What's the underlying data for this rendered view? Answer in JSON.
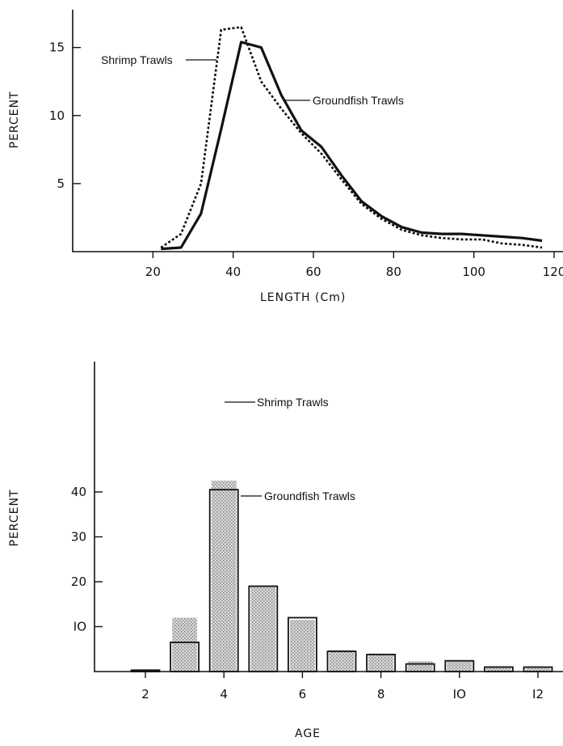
{
  "chart_data": [
    {
      "type": "line",
      "title": "",
      "xlabel": "LENGTH (Cm)",
      "ylabel": "PERCENT",
      "xlim": [
        0,
        120
      ],
      "ylim": [
        0,
        18
      ],
      "xticks": [
        "20",
        "40",
        "60",
        "80",
        "100",
        "120"
      ],
      "yticks": [
        "5",
        "10",
        "15"
      ],
      "grid": false,
      "series": [
        {
          "name": "Shrimp Trawls",
          "style": "dotted",
          "x": [
            22,
            27,
            32,
            37,
            42,
            47,
            52,
            57,
            62,
            67,
            72,
            77,
            82,
            87,
            92,
            97,
            102,
            107,
            112,
            117
          ],
          "y": [
            0.3,
            1.3,
            5.0,
            16.3,
            16.5,
            12.5,
            10.5,
            8.7,
            7.2,
            5.3,
            3.5,
            2.4,
            1.6,
            1.2,
            1.0,
            0.9,
            0.9,
            0.6,
            0.5,
            0.3
          ]
        },
        {
          "name": "Groundfish Trawls",
          "style": "solid",
          "x": [
            22,
            27,
            32,
            37,
            42,
            47,
            52,
            57,
            62,
            67,
            72,
            77,
            82,
            87,
            92,
            97,
            102,
            107,
            112,
            117
          ],
          "y": [
            0.2,
            0.3,
            2.8,
            9.0,
            15.4,
            15.0,
            11.5,
            8.9,
            7.7,
            5.6,
            3.7,
            2.6,
            1.8,
            1.4,
            1.3,
            1.3,
            1.2,
            1.1,
            1.0,
            0.8
          ]
        }
      ],
      "annotations": [
        "Shrimp Trawls",
        "Groundfish Trawls"
      ]
    },
    {
      "type": "bar",
      "title": "",
      "xlabel": "AGE",
      "ylabel": "PERCENT",
      "xlim": [
        0,
        13
      ],
      "ylim": [
        0,
        47
      ],
      "xticks": [
        "2",
        "4",
        "6",
        "8",
        "IO",
        "I2"
      ],
      "yticks": [
        "IO",
        "20",
        "30",
        "40"
      ],
      "categories": [
        2,
        3,
        4,
        5,
        6,
        7,
        8,
        9,
        10,
        11,
        12
      ],
      "grid": false,
      "series": [
        {
          "name": "Shrimp Trawls",
          "style": "stippled",
          "values": [
            0.5,
            12,
            42.5,
            19,
            11.5,
            4.8,
            4,
            2.3,
            2.3,
            1.2,
            1.1
          ]
        },
        {
          "name": "Groundfish Trawls",
          "style": "outline",
          "values": [
            0.3,
            6.5,
            40.5,
            19,
            12,
            4.5,
            3.8,
            1.7,
            2.4,
            1.0,
            1.0
          ]
        }
      ],
      "annotations": [
        "Shrimp Trawls",
        "Groundfish Trawls"
      ]
    }
  ]
}
